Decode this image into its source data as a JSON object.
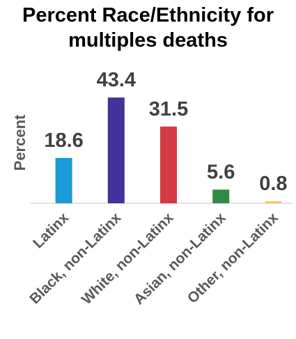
{
  "chart_data": {
    "type": "bar",
    "title_lines": [
      "Percent Race/Ethnicity for",
      "multiples deaths"
    ],
    "ylabel": "Percent",
    "xlabel": "",
    "categories": [
      "Latinx",
      "Black, non-Latinx",
      "White, non-Latinx",
      "Asian, non-Latinx",
      "Other, non-Latinx"
    ],
    "values": [
      18.6,
      43.4,
      31.5,
      5.6,
      0.8
    ],
    "data_labels": [
      "18.6",
      "43.4",
      "31.5",
      "5.6",
      "0.8"
    ],
    "bar_colors": [
      "#1a9ad6",
      "#43329a",
      "#d33a44",
      "#2f8b43",
      "#f1c75b"
    ],
    "ylim": [
      0,
      50
    ],
    "grid": false,
    "legend": "none"
  }
}
